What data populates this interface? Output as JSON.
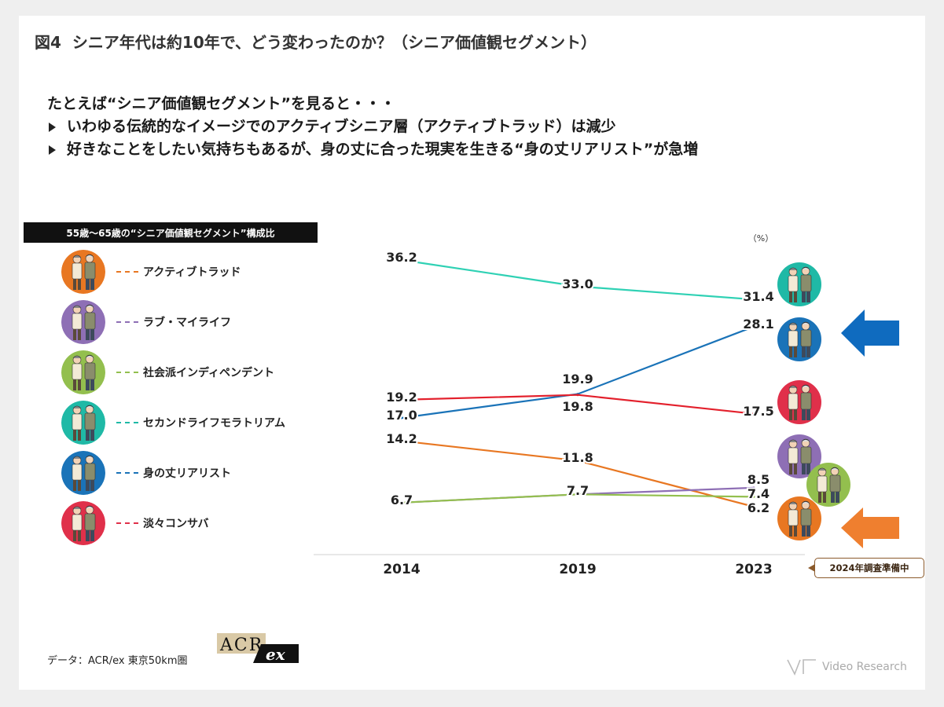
{
  "title": {
    "figure": "図4",
    "text": "シニア年代は約10年で、どう変わったのか？（シニア価値観セグメント）"
  },
  "lead": {
    "intro": "たとえば“シニア価値観セグメント”を見ると・・・",
    "bullets": [
      "いわゆる伝統的なイメージでのアクティブシニア層（アクティブトラッド）は減少",
      "好きなことをしたい気持ちもあるが、身の丈に合った現実を生きる“身の丈リアリスト”が急増"
    ]
  },
  "legend": {
    "header": "55歳〜65歳の“シニア価値観セグメント”構成比",
    "items": [
      {
        "label": "アクティブトラッド",
        "color": "#e87722",
        "icon": "senior-couple-icon"
      },
      {
        "label": "ラブ・マイライフ",
        "color": "#8e6fb5",
        "icon": "senior-couple-icon"
      },
      {
        "label": "社会派インディペンデント",
        "color": "#93bf4e",
        "icon": "senior-couple-icon"
      },
      {
        "label": "セカンドライフモラトリアム",
        "color": "#1fb9a6",
        "icon": "senior-couple-icon"
      },
      {
        "label": "身の丈リアリスト",
        "color": "#1a73b8",
        "icon": "senior-couple-icon"
      },
      {
        "label": "淡々コンサバ",
        "color": "#e0304a",
        "icon": "senior-couple-icon"
      }
    ]
  },
  "chart_data": {
    "type": "line",
    "unit": "（%）",
    "x": [
      "2014",
      "2019",
      "2023"
    ],
    "series": [
      {
        "name": "セカンドライフモラトリアム",
        "color": "#2fd1b4",
        "values": [
          36.2,
          33.0,
          31.4
        ]
      },
      {
        "name": "身の丈リアリスト",
        "color": "#1a73b8",
        "values": [
          17.0,
          19.9,
          28.1
        ]
      },
      {
        "name": "淡々コンサバ",
        "color": "#e3202c",
        "values": [
          19.2,
          19.8,
          17.5
        ]
      },
      {
        "name": "アクティブトラッド",
        "color": "#e87722",
        "values": [
          14.2,
          11.8,
          6.2
        ]
      },
      {
        "name": "ラブ・マイライフ",
        "color": "#8e6fb5",
        "values": [
          6.7,
          7.7,
          8.5
        ]
      },
      {
        "name": "社会派インディペンデント",
        "color": "#93bf4e",
        "values": [
          6.7,
          7.7,
          7.4
        ]
      }
    ],
    "labels_2014": [
      "36.2",
      "19.2",
      "17.0",
      "14.2",
      "6.7"
    ],
    "labels_2019": [
      "33.0",
      "19.9",
      "19.8",
      "11.8",
      "7.7"
    ],
    "labels_2023": [
      "31.4",
      "28.1",
      "17.5",
      "8.5",
      "7.4",
      "6.2"
    ],
    "grid": false,
    "callout": "2024年調査準備中",
    "highlight_arrows": [
      {
        "series": "身の丈リアリスト",
        "color": "#0f6bbf"
      },
      {
        "series": "アクティブトラッド",
        "color": "#ef7f2f"
      }
    ]
  },
  "footer": {
    "source": "データ：ACR/ex 東京50km圏",
    "acr_logo_text": "ACR",
    "acr_logo_sub": "ex",
    "brand": "Video Research"
  }
}
